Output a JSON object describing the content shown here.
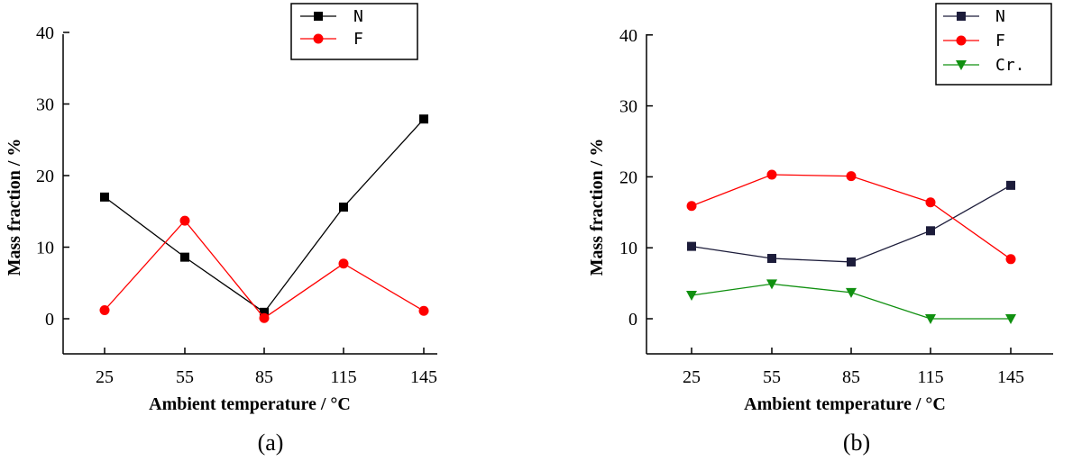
{
  "chart_data": [
    {
      "type": "line",
      "panel_label": "(a)",
      "xlabel": "Ambient temperature / °C",
      "ylabel": "Mass fraction / %",
      "categories": [
        "25",
        "55",
        "85",
        "115",
        "145"
      ],
      "yticks": [
        "0",
        "10",
        "20",
        "30",
        "40"
      ],
      "ylim": [
        -5,
        40
      ],
      "legend_position": "top-right",
      "series": [
        {
          "name": "N",
          "color": "#000000",
          "marker": "square",
          "values": [
            17.0,
            8.6,
            0.9,
            15.6,
            27.9
          ]
        },
        {
          "name": "F",
          "color": "#ff0000",
          "marker": "circle",
          "values": [
            1.2,
            13.7,
            0.1,
            7.7,
            1.1
          ]
        }
      ]
    },
    {
      "type": "line",
      "panel_label": "(b)",
      "xlabel": "Ambient temperature / °C",
      "ylabel": "Mass fraction / %",
      "categories": [
        "25",
        "55",
        "85",
        "115",
        "145"
      ],
      "yticks": [
        "0",
        "10",
        "20",
        "30",
        "40"
      ],
      "ylim": [
        -5,
        40
      ],
      "legend_position": "top-right",
      "series": [
        {
          "name": "N",
          "color": "#1c1c3a",
          "marker": "square",
          "values": [
            10.2,
            8.5,
            8.0,
            12.4,
            18.8
          ]
        },
        {
          "name": "F",
          "color": "#ff0000",
          "marker": "circle",
          "values": [
            15.9,
            20.3,
            20.1,
            16.4,
            8.4
          ]
        },
        {
          "name": "Cr.",
          "color": "#109010",
          "marker": "triangle-down",
          "values": [
            3.3,
            4.9,
            3.7,
            0.0,
            0.0
          ]
        }
      ]
    }
  ]
}
